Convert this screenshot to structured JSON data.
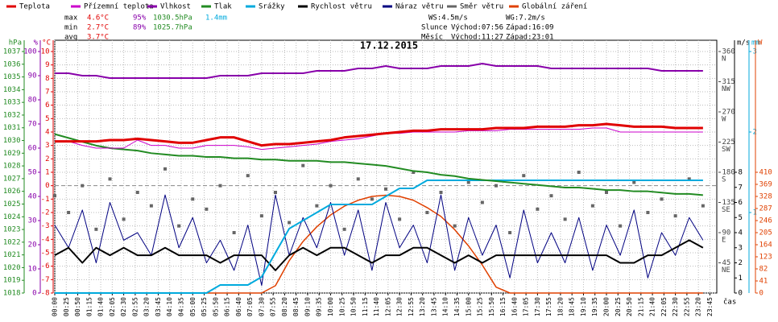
{
  "chart_data": {
    "type": "line",
    "title": "17.12.2015",
    "x_label": "čas",
    "x": [
      "00:00",
      "00:30",
      "01:00",
      "01:30",
      "02:00",
      "02:30",
      "03:00",
      "03:30",
      "04:00",
      "04:30",
      "05:00",
      "05:30",
      "06:00",
      "06:30",
      "07:00",
      "07:30",
      "08:00",
      "08:30",
      "09:00",
      "09:30",
      "10:00",
      "10:30",
      "11:00",
      "11:30",
      "12:00",
      "12:30",
      "13:00",
      "13:30",
      "14:00",
      "14:30",
      "15:00",
      "15:30",
      "16:00",
      "16:30",
      "17:00",
      "17:30",
      "18:00",
      "18:30",
      "19:00",
      "19:30",
      "20:00",
      "20:30",
      "21:00",
      "21:30",
      "22:00",
      "22:30",
      "23:00",
      "23:30"
    ],
    "xlim": [
      "00:00",
      "24:00"
    ],
    "xticks": [
      "00:00",
      "00:25",
      "00:50",
      "01:15",
      "01:40",
      "02:05",
      "02:30",
      "02:55",
      "03:20",
      "03:45",
      "04:10",
      "04:35",
      "05:00",
      "05:25",
      "05:50",
      "06:15",
      "06:40",
      "07:05",
      "07:30",
      "07:55",
      "08:20",
      "08:45",
      "09:10",
      "09:35",
      "10:00",
      "10:25",
      "10:50",
      "11:15",
      "11:40",
      "12:05",
      "12:30",
      "12:55",
      "13:20",
      "13:45",
      "14:10",
      "14:35",
      "15:00",
      "15:25",
      "15:50",
      "16:15",
      "16:40",
      "17:05",
      "17:30",
      "17:55",
      "18:20",
      "18:45",
      "19:10",
      "19:35",
      "20:00",
      "20:25",
      "20:50",
      "21:15",
      "21:40",
      "22:05",
      "22:30",
      "22:55",
      "23:20",
      "23:45"
    ],
    "grid": true,
    "axes": {
      "press": {
        "title": "hPa",
        "color": "#228b22",
        "lim": [
          1018,
          1037
        ],
        "ticks": [
          1018,
          1019,
          1020,
          1021,
          1022,
          1023,
          1024,
          1025,
          1026,
          1027,
          1028,
          1029,
          1030,
          1031,
          1032,
          1033,
          1034,
          1035,
          1036,
          1037
        ]
      },
      "hum": {
        "title": "%",
        "color": "#8800aa",
        "lim": [
          0,
          100
        ],
        "ticks": [
          0,
          10,
          20,
          30,
          40,
          50,
          60,
          70,
          80,
          90,
          100
        ]
      },
      "temp": {
        "title": "°C",
        "color": "#e00000",
        "lim": [
          -8,
          10
        ],
        "ticks": [
          -8,
          -7,
          -6,
          -5,
          -4,
          -3,
          -2,
          -1,
          0,
          1,
          2,
          3,
          4,
          5,
          6,
          7,
          8,
          9,
          10
        ]
      },
      "dir": {
        "color": "#444444",
        "lim": [
          0,
          360
        ],
        "ticks": [
          {
            "value": 45,
            "label": "45"
          },
          {
            "value": 90,
            "label": "90"
          },
          {
            "value": 135,
            "label": "135"
          },
          {
            "value": 180,
            "label": "180"
          },
          {
            "value": 225,
            "label": "225"
          },
          {
            "value": 270,
            "label": "270"
          },
          {
            "value": 315,
            "label": "315"
          },
          {
            "value": 360,
            "label": "360"
          }
        ],
        "tick_names": [
          "NE",
          "E",
          "SE",
          "S",
          "SW",
          "W",
          "NW",
          "N"
        ]
      },
      "wind": {
        "title": "m/s",
        "color": "#000000",
        "lim": [
          0,
          16
        ],
        "ticks": [
          0,
          1,
          2,
          3,
          4,
          5,
          6,
          7,
          8
        ]
      },
      "rain": {
        "title": "mm",
        "color": "#00aadd",
        "lim": [
          0,
          3
        ],
        "ticks": [
          1,
          2,
          3
        ]
      },
      "rad": {
        "title": "W",
        "color": "#e04000",
        "lim": [
          0,
          820
        ],
        "ticks": [
          0,
          41,
          82,
          123,
          164,
          205,
          246,
          287,
          328,
          369,
          410
        ]
      }
    },
    "series": [
      {
        "name": "Teplota",
        "color": "#e00000",
        "axis": "temp",
        "style": "line",
        "width": 3,
        "values": [
          3.3,
          3.3,
          3.3,
          3.3,
          3.4,
          3.4,
          3.5,
          3.4,
          3.3,
          3.2,
          3.2,
          3.4,
          3.6,
          3.6,
          3.3,
          3.0,
          3.1,
          3.1,
          3.2,
          3.3,
          3.4,
          3.6,
          3.7,
          3.8,
          3.9,
          4.0,
          4.1,
          4.1,
          4.2,
          4.2,
          4.2,
          4.2,
          4.3,
          4.3,
          4.3,
          4.4,
          4.4,
          4.4,
          4.5,
          4.5,
          4.6,
          4.5,
          4.4,
          4.4,
          4.4,
          4.3,
          4.3,
          4.3
        ]
      },
      {
        "name": "Přízemní teplota",
        "color": "#cc00cc",
        "axis": "temp",
        "style": "line",
        "width": 1,
        "values": [
          3.3,
          3.3,
          3.0,
          2.8,
          2.8,
          2.8,
          3.4,
          3.0,
          3.0,
          2.8,
          2.8,
          3.0,
          3.0,
          3.0,
          2.9,
          2.7,
          2.8,
          2.9,
          3.0,
          3.1,
          3.3,
          3.4,
          3.5,
          3.7,
          3.9,
          3.9,
          4.0,
          4.0,
          4.0,
          4.0,
          4.1,
          4.1,
          4.1,
          4.2,
          4.2,
          4.2,
          4.2,
          4.2,
          4.2,
          4.3,
          4.3,
          4.0,
          4.0,
          4.0,
          4.0,
          4.0,
          4.0,
          4.0
        ]
      },
      {
        "name": "Vlhkost",
        "color": "#8800aa",
        "axis": "hum",
        "style": "line",
        "width": 2,
        "values": [
          91,
          91,
          90,
          90,
          89,
          89,
          89,
          89,
          89,
          89,
          89,
          89,
          90,
          90,
          90,
          91,
          91,
          91,
          91,
          92,
          92,
          92,
          93,
          93,
          94,
          93,
          93,
          93,
          94,
          94,
          94,
          95,
          94,
          94,
          94,
          94,
          93,
          93,
          93,
          93,
          93,
          93,
          93,
          93,
          92,
          92,
          92,
          92
        ]
      },
      {
        "name": "Tlak",
        "color": "#228b22",
        "axis": "press",
        "style": "line",
        "width": 2,
        "values": [
          1030.5,
          1030.2,
          1029.9,
          1029.6,
          1029.4,
          1029.3,
          1029.2,
          1029.0,
          1028.9,
          1028.8,
          1028.8,
          1028.7,
          1028.7,
          1028.6,
          1028.6,
          1028.5,
          1028.5,
          1028.4,
          1028.4,
          1028.4,
          1028.3,
          1028.3,
          1028.2,
          1028.1,
          1028.0,
          1027.8,
          1027.6,
          1027.5,
          1027.3,
          1027.2,
          1027.0,
          1026.9,
          1026.8,
          1026.7,
          1026.6,
          1026.5,
          1026.4,
          1026.3,
          1026.3,
          1026.2,
          1026.1,
          1026.1,
          1026.0,
          1026.0,
          1025.9,
          1025.8,
          1025.8,
          1025.7
        ]
      },
      {
        "name": "Srážky",
        "color": "#00aadd",
        "axis": "rain",
        "style": "line",
        "width": 2,
        "values": [
          0,
          0,
          0,
          0,
          0,
          0,
          0,
          0,
          0,
          0,
          0,
          0,
          0.1,
          0.1,
          0.1,
          0.2,
          0.5,
          0.8,
          0.9,
          1.0,
          1.1,
          1.1,
          1.1,
          1.1,
          1.2,
          1.3,
          1.3,
          1.4,
          1.4,
          1.4,
          1.4,
          1.4,
          1.4,
          1.4,
          1.4,
          1.4,
          1.4,
          1.4,
          1.4,
          1.4,
          1.4,
          1.4,
          1.4,
          1.4,
          1.4,
          1.4,
          1.4,
          1.4
        ]
      },
      {
        "name": "Rychlost větru",
        "color": "#000000",
        "axis": "wind",
        "style": "line",
        "width": 2,
        "values": [
          2.5,
          3.0,
          2.0,
          3.0,
          2.5,
          3.0,
          2.5,
          2.5,
          3.0,
          2.5,
          2.5,
          2.5,
          2.0,
          2.5,
          2.5,
          2.5,
          1.5,
          2.5,
          3.0,
          2.5,
          3.0,
          3.0,
          2.5,
          2.0,
          2.5,
          2.5,
          3.0,
          3.0,
          2.5,
          2.0,
          2.5,
          2.0,
          2.5,
          2.5,
          2.5,
          2.5,
          2.5,
          2.5,
          2.5,
          2.5,
          2.5,
          2.0,
          2.0,
          2.5,
          2.5,
          3.0,
          3.5,
          3.0
        ]
      },
      {
        "name": "Náraz větru",
        "color": "#000080",
        "axis": "wind",
        "style": "line",
        "width": 1,
        "values": [
          4.5,
          3.0,
          5.5,
          2.0,
          6.0,
          3.5,
          4.0,
          2.5,
          6.5,
          3.0,
          5.0,
          2.0,
          3.5,
          1.5,
          4.5,
          0.5,
          6.5,
          2.5,
          5.0,
          3.0,
          6.0,
          2.5,
          5.5,
          1.5,
          6.0,
          3.0,
          4.5,
          2.0,
          6.5,
          1.5,
          5.0,
          2.5,
          4.5,
          1.0,
          5.5,
          2.0,
          4.0,
          2.0,
          5.0,
          1.5,
          4.5,
          2.5,
          5.5,
          1.0,
          4.0,
          2.5,
          5.0,
          3.5
        ]
      },
      {
        "name": "Směr větru",
        "color": "#666666",
        "axis": "dir",
        "style": "points",
        "values": [
          145,
          120,
          160,
          95,
          170,
          110,
          150,
          130,
          185,
          100,
          140,
          125,
          160,
          90,
          175,
          115,
          150,
          105,
          190,
          130,
          160,
          95,
          170,
          140,
          155,
          110,
          180,
          120,
          150,
          100,
          165,
          135,
          160,
          90,
          175,
          125,
          145,
          110,
          180,
          130,
          150,
          100,
          165,
          120,
          140,
          115,
          170,
          130
        ]
      },
      {
        "name": "Globální záření",
        "color": "#e04000",
        "axis": "rad",
        "style": "line",
        "width": 1.5,
        "values": [
          0,
          0,
          0,
          0,
          0,
          0,
          0,
          0,
          0,
          0,
          0,
          0,
          0,
          0,
          0,
          0,
          25,
          110,
          175,
          225,
          265,
          295,
          315,
          328,
          332,
          328,
          315,
          290,
          260,
          215,
          160,
          95,
          20,
          0,
          0,
          0,
          0,
          0,
          0,
          0,
          0,
          0,
          0,
          0,
          0,
          0,
          0,
          0
        ]
      }
    ],
    "stats": [
      {
        "label": "max",
        "temp": "4.6°C",
        "hum": "95%",
        "press": "1030.5hPa",
        "rain": "1.4mm"
      },
      {
        "label": "min",
        "temp": "2.7°C",
        "hum": "89%",
        "press": "1025.7hPa"
      },
      {
        "label": "avg",
        "temp": "3.7°C"
      }
    ],
    "info": {
      "ws": "WS:4.5m/s",
      "wg": "WG:7.2m/s",
      "sun": "Slunce",
      "sun_rise": "Východ:07:56",
      "sun_set": "Západ:16:09",
      "moon": "Měsíc",
      "moon_rise": "Východ:11:27",
      "moon_set": "Západ:23:01"
    }
  }
}
